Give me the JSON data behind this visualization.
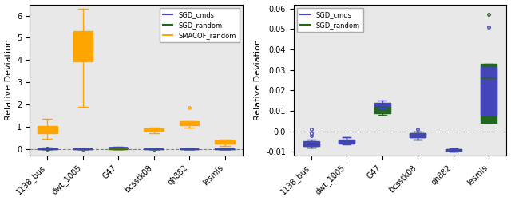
{
  "categories": [
    "1138_bus",
    "dwt_1005",
    "G47",
    "bcsstk08",
    "qh882",
    "lesmis"
  ],
  "left_ylim": [
    -0.3,
    6.5
  ],
  "right_ylim": [
    -0.012,
    0.062
  ],
  "left_ylabel": "Relative Deviation",
  "right_ylabel": "Relative Deviation",
  "bg_color": "#e8e8e8",
  "colors": {
    "SGD_cmds": "#4444bb",
    "SGD_random": "#226622",
    "SMACOF_random": "#ffa500"
  },
  "left_plot": {
    "SGD_cmds": [
      {
        "med": 0.02,
        "q1": 0.01,
        "q3": 0.04,
        "whislo": 0.0,
        "whishi": 0.06,
        "fliers": []
      },
      {
        "med": 0.005,
        "q1": 0.002,
        "q3": 0.008,
        "whislo": 0.0,
        "whishi": 0.01,
        "fliers": []
      },
      {
        "med": 0.07,
        "q1": 0.04,
        "q3": 0.09,
        "whislo": 0.02,
        "whishi": 0.12,
        "fliers": []
      },
      {
        "med": 0.003,
        "q1": 0.001,
        "q3": 0.005,
        "whislo": 0.0,
        "whishi": 0.007,
        "fliers": []
      },
      {
        "med": 0.005,
        "q1": 0.002,
        "q3": 0.008,
        "whislo": 0.0,
        "whishi": 0.01,
        "fliers": []
      },
      {
        "med": 0.005,
        "q1": 0.002,
        "q3": 0.008,
        "whislo": 0.0,
        "whishi": 0.01,
        "fliers": []
      }
    ],
    "SGD_random": [
      {
        "med": 0.0,
        "q1": -0.003,
        "q3": 0.003,
        "whislo": -0.005,
        "whishi": 0.005,
        "fliers": [
          0.015,
          0.02
        ]
      },
      {
        "med": -0.002,
        "q1": -0.004,
        "q3": 0.0,
        "whislo": -0.006,
        "whishi": 0.002,
        "fliers": [
          0.015
        ]
      },
      {
        "med": 0.0,
        "q1": -0.002,
        "q3": 0.002,
        "whislo": -0.004,
        "whishi": 0.004,
        "fliers": []
      },
      {
        "med": -0.001,
        "q1": -0.002,
        "q3": 0.001,
        "whislo": -0.003,
        "whishi": 0.002,
        "fliers": [
          0.012
        ]
      },
      {
        "med": 0.0,
        "q1": -0.002,
        "q3": 0.002,
        "whislo": -0.003,
        "whishi": 0.003,
        "fliers": []
      },
      {
        "med": -0.003,
        "q1": -0.005,
        "q3": -0.001,
        "whislo": -0.007,
        "whishi": 0.001,
        "fliers": []
      }
    ],
    "SMACOF_random": [
      {
        "med": 0.95,
        "q1": 0.72,
        "q3": 1.05,
        "whislo": 0.45,
        "whishi": 1.35,
        "fliers": []
      },
      {
        "med": 4.7,
        "q1": 3.95,
        "q3": 5.3,
        "whislo": 1.9,
        "whishi": 6.3,
        "fliers": []
      },
      {
        "med": 0.01,
        "q1": 0.005,
        "q3": 0.015,
        "whislo": 0.0,
        "whishi": 0.02,
        "fliers": []
      },
      {
        "med": 0.88,
        "q1": 0.82,
        "q3": 0.93,
        "whislo": 0.72,
        "whishi": 0.97,
        "fliers": []
      },
      {
        "med": 1.17,
        "q1": 1.09,
        "q3": 1.24,
        "whislo": 0.97,
        "whishi": 1.27,
        "fliers": [
          1.85
        ]
      },
      {
        "med": 0.32,
        "q1": 0.25,
        "q3": 0.38,
        "whislo": 0.15,
        "whishi": 0.43,
        "fliers": []
      }
    ]
  },
  "right_plot": {
    "SGD_cmds": [
      {
        "med": -0.006,
        "q1": -0.007,
        "q3": -0.005,
        "whislo": -0.008,
        "whishi": -0.004,
        "fliers": [
          -0.002,
          -0.001,
          0.001
        ]
      },
      {
        "med": -0.005,
        "q1": -0.006,
        "q3": -0.004,
        "whislo": -0.0065,
        "whishi": -0.003,
        "fliers": []
      },
      {
        "med": 0.013,
        "q1": 0.012,
        "q3": 0.014,
        "whislo": 0.011,
        "whishi": 0.015,
        "fliers": []
      },
      {
        "med": -0.002,
        "q1": -0.003,
        "q3": -0.001,
        "whislo": -0.004,
        "whishi": 0.0,
        "fliers": [
          0.001
        ]
      },
      {
        "med": -0.0092,
        "q1": -0.0096,
        "q3": -0.0088,
        "whislo": -0.01,
        "whishi": -0.0083,
        "fliers": []
      },
      {
        "med": 0.031,
        "q1": 0.008,
        "q3": 0.031,
        "whislo": 0.008,
        "whishi": 0.031,
        "fliers": [
          0.051
        ]
      }
    ],
    "SGD_random": [
      {
        "med": -0.0065,
        "q1": -0.007,
        "q3": -0.006,
        "whislo": -0.008,
        "whishi": -0.005,
        "fliers": []
      },
      {
        "med": -0.005,
        "q1": -0.0055,
        "q3": -0.0045,
        "whislo": -0.006,
        "whishi": -0.003,
        "fliers": []
      },
      {
        "med": 0.012,
        "q1": 0.009,
        "q3": 0.012,
        "whislo": 0.008,
        "whishi": 0.013,
        "fliers": []
      },
      {
        "med": -0.002,
        "q1": -0.003,
        "q3": -0.001,
        "whislo": -0.004,
        "whishi": 0.0,
        "fliers": []
      },
      {
        "med": -0.0092,
        "q1": -0.0096,
        "q3": -0.0088,
        "whislo": -0.01,
        "whishi": -0.0083,
        "fliers": []
      },
      {
        "med": 0.026,
        "q1": 0.004,
        "q3": 0.033,
        "whislo": 0.004,
        "whishi": 0.033,
        "fliers": [
          0.057
        ]
      }
    ]
  },
  "dashed_line_y": 0.0,
  "left_yticks": [
    0,
    1,
    2,
    3,
    4,
    5,
    6
  ],
  "right_yticks": [
    -0.01,
    0.0,
    0.01,
    0.02,
    0.03,
    0.04,
    0.05,
    0.06
  ],
  "figsize": [
    6.4,
    2.52
  ],
  "dpi": 100
}
